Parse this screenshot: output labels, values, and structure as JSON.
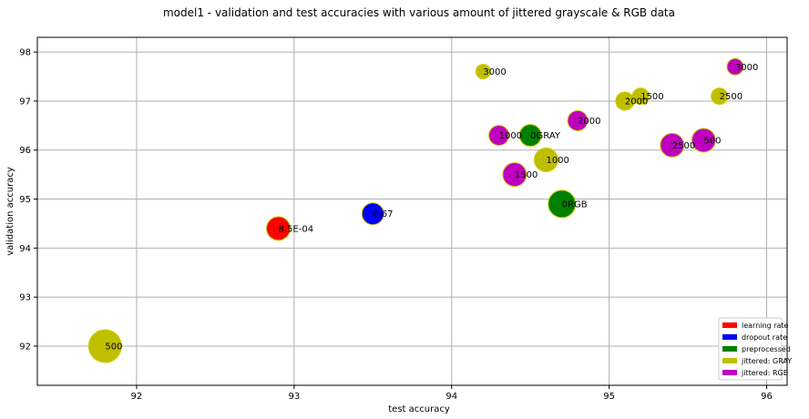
{
  "chart_data": {
    "type": "scatter",
    "title": "model1 - validation and test accuracies with various amount of jittered grayscale & RGB data",
    "xlabel": "test accuracy",
    "ylabel": "validation accuracy",
    "xlim": [
      91.37,
      96.13
    ],
    "ylim": [
      91.2,
      98.3
    ],
    "xticks": [
      92,
      93,
      94,
      95,
      96
    ],
    "yticks": [
      92,
      93,
      94,
      95,
      96,
      97,
      98
    ],
    "grid": true,
    "legend_position": "lower-right",
    "legend": [
      {
        "label": "learning rate",
        "color": "#ff0000"
      },
      {
        "label": "dropout rate",
        "color": "#0000ff"
      },
      {
        "label": "preprocessed",
        "color": "#008000"
      },
      {
        "label": "jittered: GRAY",
        "color": "#bfbf00"
      },
      {
        "label": "jittered: RGB",
        "color": "#bf00bf"
      }
    ],
    "points": [
      {
        "x": 92.9,
        "y": 94.4,
        "label": "8.5E-04",
        "color": "#ff0000",
        "size": 13
      },
      {
        "x": 93.5,
        "y": 94.7,
        "label": "0.67",
        "color": "#0000ff",
        "size": 12
      },
      {
        "x": 94.5,
        "y": 96.3,
        "label": "0GRAY",
        "color": "#008000",
        "size": 12
      },
      {
        "x": 94.7,
        "y": 94.9,
        "label": "0RGB",
        "color": "#008000",
        "size": 15
      },
      {
        "x": 91.8,
        "y": 92.0,
        "label": "500",
        "color": "#bfbf00",
        "size": 18
      },
      {
        "x": 94.6,
        "y": 95.8,
        "label": "1000",
        "color": "#bfbf00",
        "size": 13
      },
      {
        "x": 95.2,
        "y": 97.1,
        "label": "1500",
        "color": "#bfbf00",
        "size": 9
      },
      {
        "x": 95.1,
        "y": 97.0,
        "label": "2000",
        "color": "#bfbf00",
        "size": 10
      },
      {
        "x": 95.7,
        "y": 97.1,
        "label": "2500",
        "color": "#bfbf00",
        "size": 9
      },
      {
        "x": 94.2,
        "y": 97.6,
        "label": "3000",
        "color": "#bfbf00",
        "size": 8
      },
      {
        "x": 95.6,
        "y": 96.2,
        "label": "500",
        "color": "#bf00bf",
        "size": 13
      },
      {
        "x": 94.3,
        "y": 96.3,
        "label": "1000",
        "color": "#bf00bf",
        "size": 11
      },
      {
        "x": 94.4,
        "y": 95.5,
        "label": "1500",
        "color": "#bf00bf",
        "size": 13
      },
      {
        "x": 94.8,
        "y": 96.6,
        "label": "2000",
        "color": "#bf00bf",
        "size": 11
      },
      {
        "x": 95.4,
        "y": 96.1,
        "label": "2500",
        "color": "#bf00bf",
        "size": 13
      },
      {
        "x": 95.8,
        "y": 97.7,
        "label": "3000",
        "color": "#bf00bf",
        "size": 9
      }
    ]
  }
}
